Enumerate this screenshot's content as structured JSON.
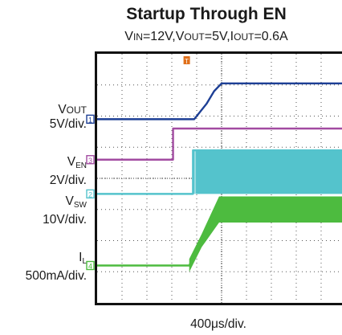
{
  "chart_data": {
    "type": "line",
    "title": "Startup Through EN",
    "subtitle": {
      "prefix1": "V",
      "sc1": "IN",
      "t1": "=12V,V",
      "sc2": "OUT",
      "t2": "=5V,I",
      "sc3": "OUT",
      "t3": "=0.6A"
    },
    "xlabel": "400μs/div.",
    "grid": true,
    "x_divisions": 10,
    "y_divisions": 8,
    "x_unit": "div",
    "y_unit": "div",
    "xlim": [
      0,
      10
    ],
    "ylim": [
      0,
      8
    ],
    "trigger_marker": {
      "label": "T",
      "x_div": 3.6,
      "color": "#e0701b"
    },
    "series": [
      {
        "channel": "1",
        "color": "#1d3f95",
        "label_main": "V",
        "label_sc": "OUT",
        "label_sub": "",
        "label_scale": "5V/div.",
        "ground_div": 5.9,
        "points": [
          [
            0,
            5.9
          ],
          [
            3.9,
            5.9
          ],
          [
            4.4,
            6.4
          ],
          [
            4.7,
            6.8
          ],
          [
            5.0,
            7.05
          ],
          [
            10,
            7.05
          ]
        ]
      },
      {
        "channel": "3",
        "color": "#a24ba1",
        "label_main": "V",
        "label_sc": "",
        "label_sub": "EN",
        "label_scale": "2V/div.",
        "ground_div": 4.6,
        "points": [
          [
            0,
            4.6
          ],
          [
            3.05,
            4.6
          ],
          [
            3.05,
            5.6
          ],
          [
            10,
            5.6
          ]
        ]
      },
      {
        "channel": "2",
        "color": "#54c3cc",
        "label_main": "V",
        "label_sc": "",
        "label_sub": "SW",
        "label_scale": "10V/div.",
        "ground_div": 3.5,
        "points": [
          [
            0,
            3.5
          ],
          [
            3.85,
            3.5
          ],
          [
            3.85,
            4.9
          ],
          [
            10,
            4.9
          ]
        ],
        "band": {
          "x_start": 3.85,
          "x_end": 10,
          "low": 3.5,
          "high": 4.9
        }
      },
      {
        "channel": "4",
        "color": "#4dbb3f",
        "label_main": "I",
        "label_sc": "",
        "label_sub": "L",
        "label_scale": "500mA/div.",
        "ground_div": 1.2,
        "points": [
          [
            0,
            1.2
          ],
          [
            3.7,
            1.2
          ],
          [
            4.2,
            2.0
          ],
          [
            4.9,
            3.0
          ],
          [
            10,
            3.0
          ]
        ],
        "band": {
          "x_start": 3.7,
          "x_end": 10,
          "ripple": 0.42
        }
      }
    ]
  }
}
